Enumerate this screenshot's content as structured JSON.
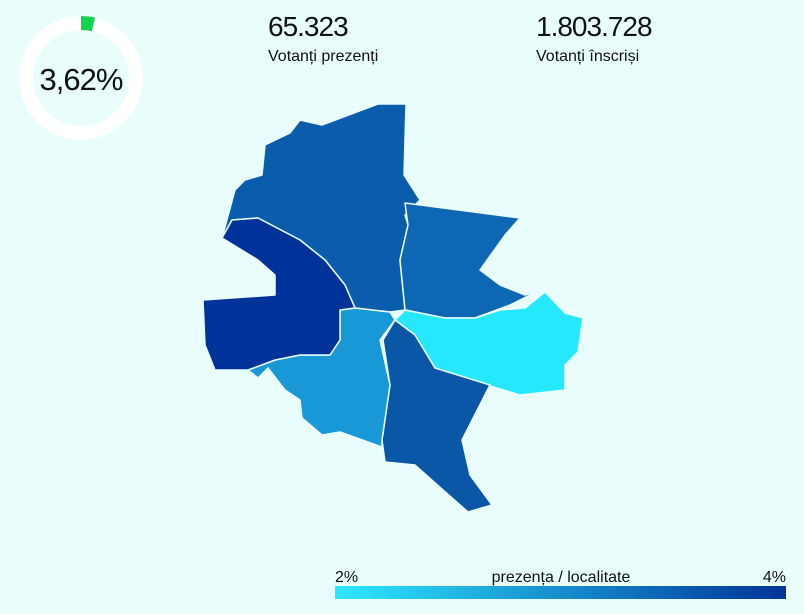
{
  "gauge": {
    "value": 3.62,
    "label": "3,62%",
    "color": "#12d44a",
    "track_color": "#ffffff"
  },
  "stats": [
    {
      "value": "65.323",
      "label": "Votanți prezenți"
    },
    {
      "value": "1.803.728",
      "label": "Votanți înscriși"
    }
  ],
  "map": {
    "sectors": [
      {
        "color": "#0a5cad"
      },
      {
        "color": "#0e67b5"
      },
      {
        "color": "#25e8ff"
      },
      {
        "color": "#0a57a8"
      },
      {
        "color": "#1898d6"
      },
      {
        "color": "#003399"
      }
    ]
  },
  "legend": {
    "title": "prezența / localitate",
    "min": {
      "value": 2,
      "label": "2%"
    },
    "max": {
      "value": 4,
      "label": "4%"
    },
    "colors": [
      "#2ee8ff",
      "#003399"
    ]
  }
}
